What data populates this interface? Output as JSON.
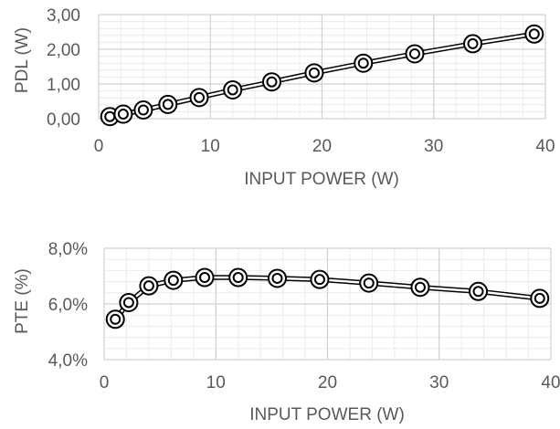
{
  "chart_data": [
    {
      "type": "line",
      "title": "",
      "xlabel": "INPUT POWER (W)",
      "ylabel": "PDL (W)",
      "xlim": [
        0,
        40
      ],
      "ylim": [
        0,
        3
      ],
      "x_ticks": [
        "0",
        "10",
        "20",
        "30",
        "40"
      ],
      "y_ticks": [
        "0,00",
        "1,00",
        "2,00",
        "3,00"
      ],
      "grid": true,
      "legend": "none",
      "series": [
        {
          "x": [
            1.0,
            2.2,
            4.0,
            6.2,
            9.0,
            12.0,
            15.5,
            19.3,
            23.7,
            28.3,
            33.5,
            39.0
          ],
          "y": [
            0.06,
            0.13,
            0.25,
            0.41,
            0.61,
            0.83,
            1.06,
            1.32,
            1.6,
            1.87,
            2.16,
            2.44
          ]
        }
      ],
      "color": "#000000"
    },
    {
      "type": "line",
      "title": "",
      "xlabel": "INPUT POWER (W)",
      "ylabel": "PTE (%)",
      "xlim": [
        0,
        40
      ],
      "ylim": [
        4.0,
        8.0
      ],
      "x_ticks": [
        "0",
        "10",
        "20",
        "30",
        "40"
      ],
      "y_ticks": [
        "4,0%",
        "6,0%",
        "8,0%"
      ],
      "grid": true,
      "legend": "none",
      "series": [
        {
          "x": [
            1.0,
            2.2,
            4.0,
            6.2,
            9.0,
            12.0,
            15.5,
            19.3,
            23.7,
            28.3,
            33.5,
            39.0
          ],
          "y": [
            5.45,
            6.05,
            6.65,
            6.85,
            6.95,
            6.95,
            6.92,
            6.88,
            6.75,
            6.6,
            6.45,
            6.2
          ]
        }
      ],
      "color": "#000000"
    }
  ]
}
